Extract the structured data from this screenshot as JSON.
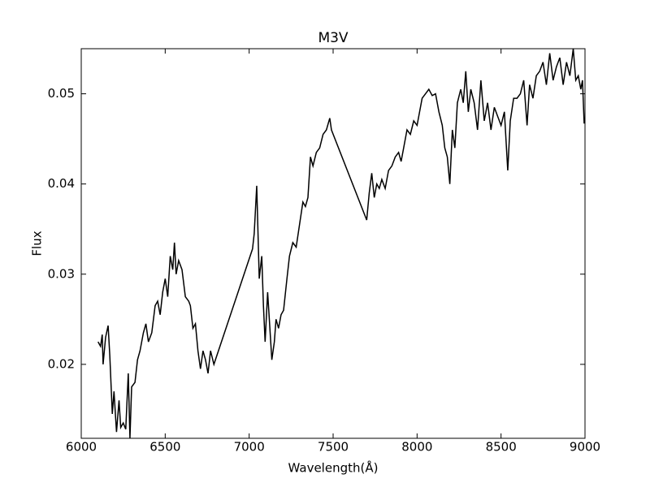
{
  "chart_data": {
    "type": "line",
    "title": "M3V",
    "x_label": "Wavelength(Å)",
    "y_label": "Flux",
    "color": "#000000",
    "x": [
      6100,
      6115,
      6125,
      6130,
      6145,
      6160,
      6170,
      6185,
      6195,
      6210,
      6225,
      6235,
      6250,
      6265,
      6280,
      6290,
      6300,
      6320,
      6335,
      6350,
      6370,
      6385,
      6400,
      6420,
      6440,
      6455,
      6470,
      6485,
      6500,
      6515,
      6530,
      6545,
      6555,
      6565,
      6580,
      6600,
      6620,
      6640,
      6650,
      6665,
      6680,
      6695,
      6710,
      6725,
      6740,
      6755,
      6770,
      6790,
      7020,
      7030,
      7045,
      7060,
      7075,
      7085,
      7095,
      7110,
      7135,
      7150,
      7160,
      7175,
      7190,
      7205,
      7225,
      7240,
      7260,
      7280,
      7300,
      7320,
      7335,
      7350,
      7365,
      7380,
      7400,
      7420,
      7440,
      7460,
      7480,
      7490,
      7700,
      7715,
      7730,
      7745,
      7760,
      7775,
      7790,
      7810,
      7830,
      7850,
      7870,
      7890,
      7905,
      7920,
      7940,
      7960,
      7980,
      8000,
      8015,
      8030,
      8050,
      8070,
      8090,
      8110,
      8130,
      8150,
      8165,
      8180,
      8195,
      8210,
      8225,
      8240,
      8260,
      8275,
      8290,
      8305,
      8320,
      8340,
      8360,
      8380,
      8400,
      8420,
      8440,
      8460,
      8480,
      8500,
      8520,
      8540,
      8555,
      8575,
      8595,
      8615,
      8635,
      8655,
      8670,
      8690,
      8710,
      8730,
      8750,
      8770,
      8790,
      8810,
      8830,
      8850,
      8870,
      8890,
      8910,
      8930,
      8945,
      8960,
      8975,
      8985,
      8995
    ],
    "values": [
      0.0225,
      0.022,
      0.0233,
      0.02,
      0.023,
      0.0243,
      0.021,
      0.0145,
      0.017,
      0.0125,
      0.016,
      0.013,
      0.0135,
      0.0128,
      0.019,
      0.0118,
      0.0175,
      0.018,
      0.0205,
      0.0215,
      0.0235,
      0.0245,
      0.0225,
      0.0235,
      0.0265,
      0.027,
      0.0255,
      0.028,
      0.0295,
      0.0275,
      0.032,
      0.0305,
      0.0335,
      0.03,
      0.0315,
      0.0305,
      0.0275,
      0.027,
      0.0265,
      0.024,
      0.0245,
      0.0215,
      0.0195,
      0.0215,
      0.0205,
      0.019,
      0.0215,
      0.02,
      0.0328,
      0.0345,
      0.0398,
      0.0295,
      0.032,
      0.0265,
      0.0225,
      0.028,
      0.0205,
      0.0225,
      0.025,
      0.024,
      0.0255,
      0.026,
      0.0295,
      0.032,
      0.0335,
      0.033,
      0.0355,
      0.038,
      0.0375,
      0.0385,
      0.043,
      0.042,
      0.0435,
      0.044,
      0.0455,
      0.046,
      0.0473,
      0.046,
      0.036,
      0.039,
      0.0412,
      0.0385,
      0.04,
      0.0395,
      0.0405,
      0.0395,
      0.0415,
      0.042,
      0.043,
      0.0435,
      0.0425,
      0.044,
      0.046,
      0.0455,
      0.047,
      0.0465,
      0.048,
      0.0495,
      0.05,
      0.0505,
      0.0498,
      0.05,
      0.048,
      0.0465,
      0.044,
      0.043,
      0.04,
      0.046,
      0.044,
      0.049,
      0.0505,
      0.049,
      0.0525,
      0.048,
      0.0505,
      0.049,
      0.046,
      0.0515,
      0.047,
      0.049,
      0.046,
      0.0485,
      0.0475,
      0.0465,
      0.048,
      0.0415,
      0.047,
      0.0495,
      0.0495,
      0.05,
      0.0515,
      0.0465,
      0.051,
      0.0495,
      0.052,
      0.0525,
      0.0535,
      0.051,
      0.0545,
      0.0515,
      0.053,
      0.054,
      0.051,
      0.0535,
      0.052,
      0.055,
      0.0515,
      0.052,
      0.0505,
      0.0515,
      0.0467
    ],
    "xlim": [
      6000,
      9000
    ],
    "ylim": [
      0.0118,
      0.055
    ],
    "xticks": [
      6000,
      6500,
      7000,
      7500,
      8000,
      8500,
      9000
    ],
    "yticks": [
      0.02,
      0.03,
      0.04,
      0.05
    ]
  }
}
